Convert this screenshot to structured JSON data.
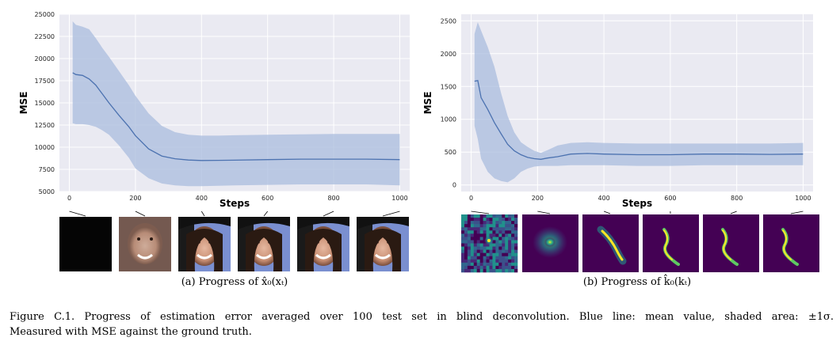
{
  "chart_data": [
    {
      "type": "line",
      "panel": "a",
      "xlabel": "Steps",
      "ylabel": "MSE",
      "xlim": [
        -30,
        1030
      ],
      "ylim": [
        5000,
        25000
      ],
      "xticks": [
        0,
        200,
        400,
        600,
        800,
        1000
      ],
      "yticks": [
        5000,
        7500,
        10000,
        12500,
        15000,
        17500,
        20000,
        22500,
        25000
      ],
      "grid": true,
      "series": [
        {
          "name": "mean value",
          "x": [
            10,
            20,
            40,
            60,
            80,
            100,
            120,
            150,
            180,
            200,
            240,
            280,
            320,
            360,
            400,
            450,
            500,
            600,
            700,
            800,
            900,
            1000
          ],
          "y": [
            18400,
            18200,
            18100,
            17700,
            17000,
            16000,
            15000,
            13600,
            12300,
            11300,
            9800,
            9000,
            8700,
            8550,
            8500,
            8520,
            8540,
            8600,
            8650,
            8650,
            8650,
            8600
          ]
        }
      ],
      "band": {
        "name": "±1σ",
        "upper": [
          24200,
          23800,
          23600,
          23300,
          22300,
          21200,
          20200,
          18600,
          17000,
          15800,
          13800,
          12400,
          11700,
          11400,
          11300,
          11300,
          11350,
          11400,
          11450,
          11500,
          11500,
          11500
        ],
        "lower": [
          12700,
          12600,
          12600,
          12500,
          12300,
          11900,
          11400,
          10200,
          8800,
          7600,
          6500,
          5900,
          5700,
          5600,
          5600,
          5650,
          5700,
          5750,
          5800,
          5800,
          5800,
          5700
        ]
      },
      "thumbnails": {
        "steps": [
          0,
          200,
          400,
          600,
          800,
          1000
        ],
        "kind": "face"
      },
      "caption": "(a) Progress of x̂₀(xₜ)"
    },
    {
      "type": "line",
      "panel": "b",
      "xlabel": "Steps",
      "ylabel": "MSE",
      "xlim": [
        -30,
        1030
      ],
      "ylim": [
        -100,
        2600
      ],
      "xticks": [
        0,
        200,
        400,
        600,
        800,
        1000
      ],
      "yticks": [
        0,
        500,
        1000,
        1500,
        2000,
        2500
      ],
      "grid": true,
      "series": [
        {
          "name": "mean value",
          "x": [
            10,
            20,
            30,
            50,
            70,
            90,
            110,
            130,
            150,
            170,
            190,
            210,
            230,
            260,
            300,
            350,
            400,
            500,
            600,
            700,
            800,
            900,
            1000
          ],
          "y": [
            1580,
            1590,
            1330,
            1150,
            950,
            780,
            620,
            520,
            460,
            420,
            400,
            390,
            410,
            430,
            470,
            480,
            470,
            460,
            460,
            470,
            470,
            465,
            470
          ]
        }
      ],
      "band": {
        "name": "±1σ",
        "upper": [
          2300,
          2480,
          2350,
          2100,
          1800,
          1400,
          1050,
          800,
          650,
          580,
          520,
          490,
          530,
          600,
          640,
          650,
          640,
          630,
          630,
          630,
          630,
          630,
          640
        ],
        "lower": [
          900,
          700,
          400,
          200,
          100,
          60,
          40,
          100,
          200,
          250,
          280,
          290,
          290,
          290,
          300,
          300,
          300,
          290,
          290,
          300,
          300,
          300,
          300
        ]
      },
      "thumbnails": {
        "steps": [
          0,
          200,
          400,
          600,
          800,
          1000
        ],
        "kind": "kernel"
      },
      "caption": "(b) Progress of k̂₀(kₜ)"
    }
  ],
  "figure_caption": {
    "line1": "Figure C.1.  Progress of estimation error averaged over 100 test set in blind deconvolution.  Blue line: mean value, shaded area: ±1σ.",
    "line2": "Measured with MSE against the ground truth."
  },
  "colors": {
    "line": "#4c72b0",
    "band": "#a9bcdd",
    "plot_bg": "#eaeaf2",
    "grid": "#ffffff",
    "viridis_dark": "#440154",
    "viridis_yellow": "#fde725"
  }
}
